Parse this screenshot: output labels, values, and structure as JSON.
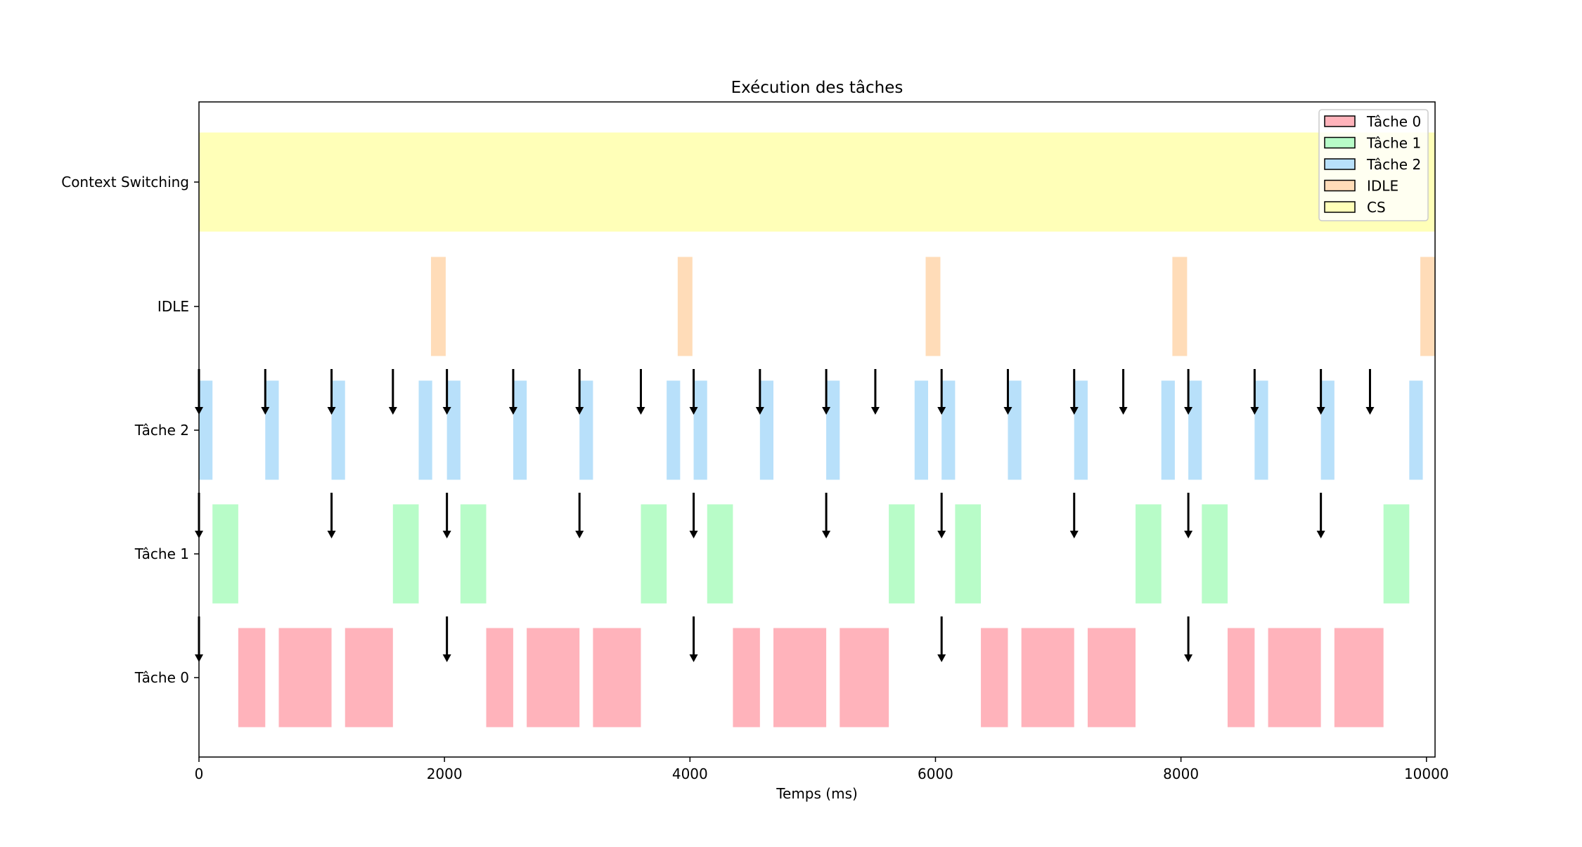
{
  "chart_data": {
    "type": "gantt",
    "title": "Exécution des tâches",
    "xlabel": "Temps (ms)",
    "xlim": [
      0,
      10070
    ],
    "xticks": [
      0,
      2000,
      4000,
      6000,
      8000,
      10000
    ],
    "xtick_labels": [
      "0",
      "2000",
      "4000",
      "6000",
      "8000",
      "10000"
    ],
    "rows": [
      {
        "id": "cs",
        "label": "Context Switching",
        "color": "#ffffb8"
      },
      {
        "id": "idle",
        "label": "IDLE",
        "color": "#ffdcb8"
      },
      {
        "id": "t2",
        "label": "Tâche 2",
        "color": "#b8e0fa"
      },
      {
        "id": "t1",
        "label": "Tâche 1",
        "color": "#b8fcc8"
      },
      {
        "id": "t0",
        "label": "Tâche 0",
        "color": "#ffb3bb"
      }
    ],
    "legend": {
      "position": "top-right",
      "entries": [
        {
          "label": "Tâche 0",
          "color": "#ffb3bb"
        },
        {
          "label": "Tâche 1",
          "color": "#b8fcc8"
        },
        {
          "label": "Tâche 2",
          "color": "#b8e0fa"
        },
        {
          "label": "IDLE",
          "color": "#ffdcb8"
        },
        {
          "label": "CS",
          "color": "#ffffb8"
        }
      ]
    },
    "segments": {
      "cs": [
        [
          0,
          10070
        ]
      ],
      "idle": [
        [
          1890,
          2010
        ],
        [
          3900,
          4020
        ],
        [
          5920,
          6040
        ],
        [
          7930,
          8050
        ],
        [
          9950,
          10070
        ]
      ],
      "t2": [
        [
          0,
          110
        ],
        [
          540,
          650
        ],
        [
          1080,
          1190
        ],
        [
          1790,
          1900
        ],
        [
          2020,
          2130
        ],
        [
          2560,
          2670
        ],
        [
          3100,
          3210
        ],
        [
          3810,
          3920
        ],
        [
          4030,
          4140
        ],
        [
          4570,
          4680
        ],
        [
          5110,
          5220
        ],
        [
          5830,
          5940
        ],
        [
          6050,
          6160
        ],
        [
          6590,
          6700
        ],
        [
          7130,
          7240
        ],
        [
          7840,
          7950
        ],
        [
          8060,
          8170
        ],
        [
          8600,
          8710
        ],
        [
          9140,
          9250
        ],
        [
          9860,
          9970
        ]
      ],
      "t1": [
        [
          110,
          320
        ],
        [
          1580,
          1790
        ],
        [
          2130,
          2340
        ],
        [
          3600,
          3810
        ],
        [
          4140,
          4350
        ],
        [
          5620,
          5830
        ],
        [
          6160,
          6370
        ],
        [
          7630,
          7840
        ],
        [
          8170,
          8380
        ],
        [
          9650,
          9860
        ]
      ],
      "t0": [
        [
          320,
          540
        ],
        [
          650,
          1080
        ],
        [
          1190,
          1580
        ],
        [
          2340,
          2560
        ],
        [
          2670,
          3100
        ],
        [
          3210,
          3600
        ],
        [
          4350,
          4570
        ],
        [
          4680,
          5110
        ],
        [
          5220,
          5620
        ],
        [
          6370,
          6590
        ],
        [
          6700,
          7130
        ],
        [
          7240,
          7630
        ],
        [
          8380,
          8600
        ],
        [
          8710,
          9140
        ],
        [
          9250,
          9650
        ]
      ]
    },
    "arrivals": {
      "t2": [
        0,
        540,
        1080,
        1580,
        2020,
        2560,
        3100,
        3600,
        4030,
        4570,
        5110,
        5510,
        6050,
        6590,
        7130,
        7530,
        8060,
        8600,
        9140,
        9540
      ],
      "t1": [
        0,
        1080,
        2020,
        3100,
        4030,
        5110,
        6050,
        7130,
        8060,
        9140
      ],
      "t0": [
        0,
        2020,
        4030,
        6050,
        8060
      ]
    }
  }
}
